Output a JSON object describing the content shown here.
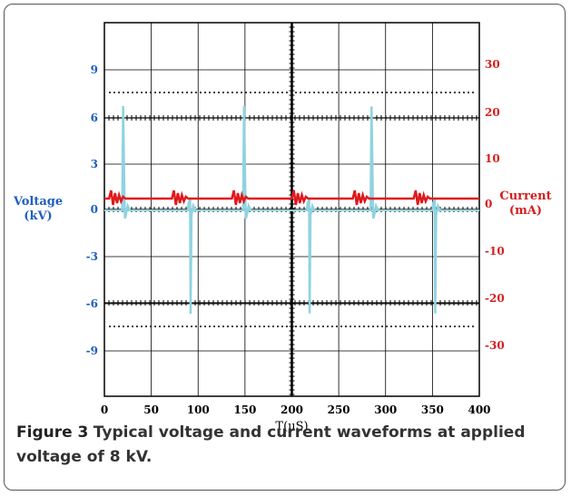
{
  "caption": {
    "label": "Figure 3",
    "text": "Typical voltage and current waveforms at applied voltage of 8 kV."
  },
  "chart_data": {
    "type": "line",
    "xlabel": "T(µS)",
    "ylabel_left": "Voltage\n(kV)",
    "ylabel_right": "Current\n(mA)",
    "xlim": [
      0,
      400
    ],
    "ylim_left": [
      -12,
      12
    ],
    "ylim_right": [
      -40,
      40
    ],
    "x_ticks": [
      0,
      50,
      100,
      150,
      200,
      250,
      300,
      350,
      400
    ],
    "y_left_ticks": [
      "9",
      "6",
      "3",
      "0",
      "-3",
      "-6",
      "-9"
    ],
    "y_right_ticks": [
      "30",
      "20",
      "10",
      "0",
      "-10",
      "-20",
      "-30"
    ],
    "grid": true,
    "colors": {
      "voltage": "#8fd3e0",
      "current": "#e0191c",
      "left_axis": "#1f5fbf",
      "right_axis": "#d41e1e",
      "frame": "#000000"
    },
    "series": [
      {
        "axis": "left",
        "spikes": [
          {
            "x": 20,
            "peak": 6.0
          },
          {
            "x": 90,
            "peak": -6.5
          },
          {
            "x": 149,
            "peak": 6.2
          },
          {
            "x": 217,
            "peak": -6.3
          },
          {
            "x": 285,
            "peak": 5.8
          },
          {
            "x": 351,
            "peak": -6.3
          }
        ],
        "baseline": 0
      },
      {
        "axis": "right",
        "baseline": 2,
        "bursts": [
          5,
          72,
          136,
          200,
          265,
          330
        ]
      }
    ]
  }
}
